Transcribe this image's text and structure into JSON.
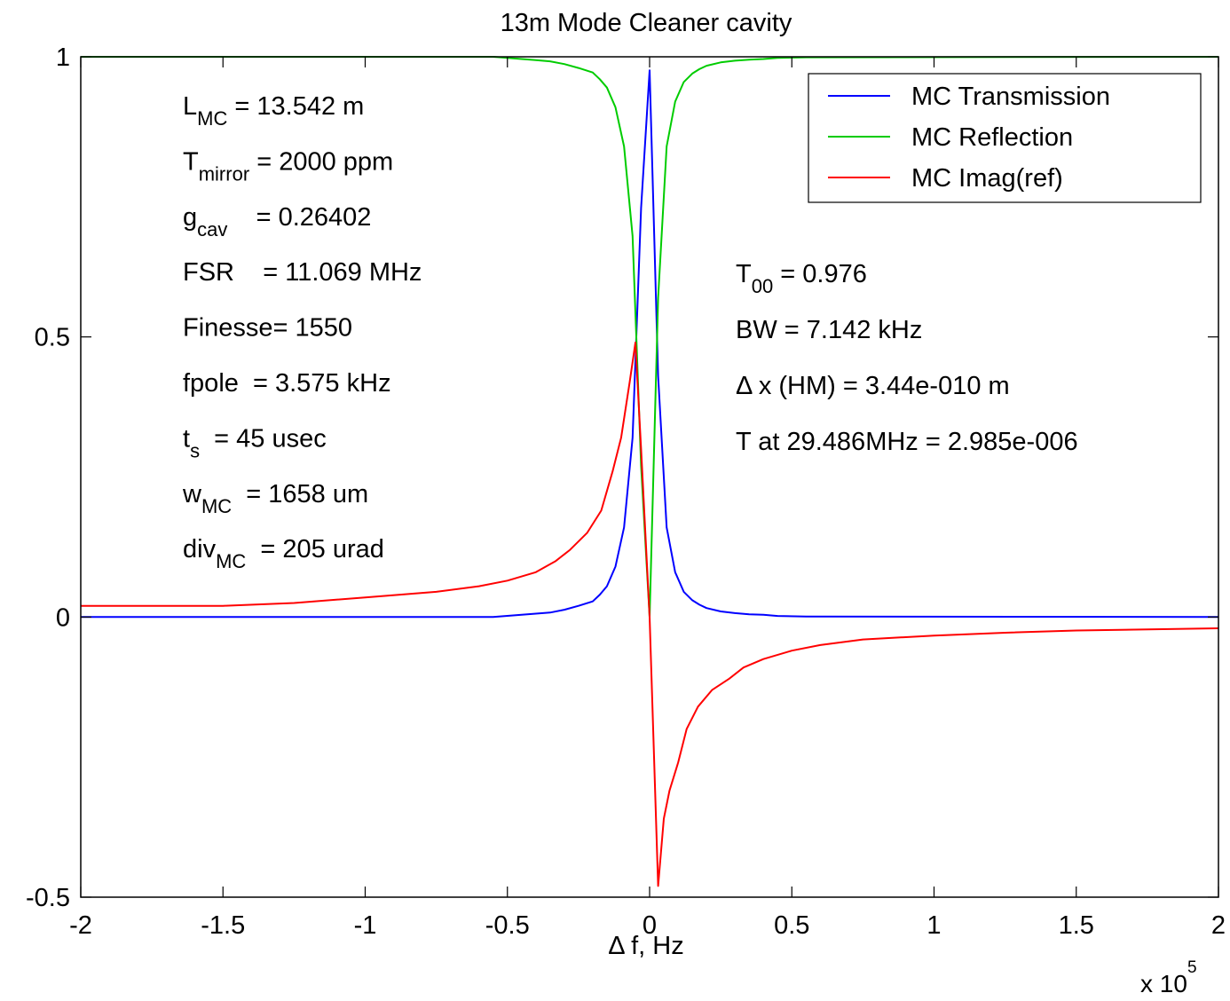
{
  "chart_data": {
    "type": "line",
    "title": "13m Mode Cleaner cavity",
    "xlabel": "Δ f, Hz",
    "x_multiplier": "x 10",
    "x_multiplier_exp": "5",
    "xlim": [
      -2,
      2
    ],
    "ylim": [
      -0.5,
      1
    ],
    "xticks": [
      "-2",
      "-1.5",
      "-1",
      "-0.5",
      "0",
      "0.5",
      "1",
      "1.5",
      "2"
    ],
    "yticks": [
      "-0.5",
      "0",
      "0.5",
      "1"
    ],
    "xtick_values": [
      -2,
      -1.5,
      -1,
      -0.5,
      0,
      0.5,
      1,
      1.5,
      2
    ],
    "ytick_values": [
      -0.5,
      0,
      0.5,
      1
    ],
    "grid": false,
    "legend_position": "top-right",
    "series": [
      {
        "name": "MC Transmission",
        "color": "#0000ff",
        "x": [
          -2.0,
          -0.55,
          -0.45,
          -0.4,
          -0.35,
          -0.3,
          -0.25,
          -0.2,
          -0.175,
          -0.15,
          -0.12,
          -0.09,
          -0.06,
          -0.03,
          0.0,
          0.03,
          0.06,
          0.09,
          0.12,
          0.15,
          0.175,
          0.2,
          0.25,
          0.3,
          0.35,
          0.4,
          0.45,
          0.55,
          2.0
        ],
        "y": [
          0.0,
          0.0,
          0.004,
          0.006,
          0.008,
          0.013,
          0.02,
          0.028,
          0.04,
          0.055,
          0.09,
          0.16,
          0.32,
          0.73,
          0.976,
          0.43,
          0.16,
          0.08,
          0.045,
          0.03,
          0.022,
          0.016,
          0.01,
          0.007,
          0.005,
          0.004,
          0.002,
          0.001,
          0.0
        ]
      },
      {
        "name": "MC Reflection",
        "color": "#00cc00",
        "x": [
          -2.0,
          -0.55,
          -0.45,
          -0.4,
          -0.35,
          -0.3,
          -0.25,
          -0.2,
          -0.175,
          -0.15,
          -0.12,
          -0.09,
          -0.06,
          -0.03,
          0.0,
          0.03,
          0.06,
          0.09,
          0.12,
          0.15,
          0.175,
          0.2,
          0.25,
          0.3,
          0.35,
          0.4,
          0.45,
          0.55,
          2.0
        ],
        "y": [
          1.0,
          1.0,
          0.996,
          0.994,
          0.992,
          0.987,
          0.98,
          0.972,
          0.96,
          0.945,
          0.91,
          0.84,
          0.68,
          0.27,
          0.0,
          0.57,
          0.84,
          0.92,
          0.955,
          0.97,
          0.978,
          0.984,
          0.99,
          0.993,
          0.995,
          0.996,
          0.998,
          0.999,
          1.0
        ]
      },
      {
        "name": "MC Imag(ref)",
        "color": "#ff0000",
        "x": [
          -2.0,
          -1.5,
          -1.25,
          -1.0,
          -0.75,
          -0.6,
          -0.5,
          -0.4,
          -0.33,
          -0.28,
          -0.22,
          -0.17,
          -0.13,
          -0.1,
          -0.07,
          -0.05,
          -0.03,
          0.0,
          0.03,
          0.05,
          0.07,
          0.1,
          0.13,
          0.17,
          0.22,
          0.28,
          0.33,
          0.4,
          0.5,
          0.6,
          0.75,
          1.0,
          1.25,
          1.5,
          2.0
        ],
        "y": [
          0.02,
          0.02,
          0.025,
          0.035,
          0.045,
          0.055,
          0.065,
          0.08,
          0.1,
          0.12,
          0.15,
          0.19,
          0.26,
          0.32,
          0.42,
          0.49,
          0.3,
          0.0,
          -0.48,
          -0.36,
          -0.31,
          -0.26,
          -0.2,
          -0.16,
          -0.13,
          -0.11,
          -0.09,
          -0.075,
          -0.06,
          -0.05,
          -0.04,
          -0.033,
          -0.028,
          -0.024,
          -0.02
        ]
      }
    ],
    "annotations_left": [
      {
        "main": "L",
        "sub": "MC",
        "rest": " = 13.542 m"
      },
      {
        "main": "T",
        "sub": "mirror",
        "rest": " = 2000 ppm"
      },
      {
        "main": "g",
        "sub": "cav",
        "rest": "    = 0.26402"
      },
      {
        "main": "FSR    = 11.069 MHz",
        "sub": "",
        "rest": ""
      },
      {
        "main": "Finesse= 1550",
        "sub": "",
        "rest": ""
      },
      {
        "main": "fpole  = 3.575 kHz",
        "sub": "",
        "rest": ""
      },
      {
        "main": "t",
        "sub": "s",
        "rest": "  = 45 usec"
      },
      {
        "main": "w",
        "sub": "MC",
        "rest": "  = 1658 um"
      },
      {
        "main": "div",
        "sub": "MC",
        "rest": "  = 205 urad"
      }
    ],
    "annotations_right": [
      {
        "main": "T",
        "sub": "00",
        "rest": " = 0.976"
      },
      {
        "main": "BW = 7.142 kHz",
        "sub": "",
        "rest": ""
      },
      {
        "main": "Δ x (HM) = 3.44e-010 m",
        "sub": "",
        "rest": ""
      },
      {
        "main": "T at 29.486MHz = 2.985e-006",
        "sub": "",
        "rest": ""
      }
    ]
  }
}
